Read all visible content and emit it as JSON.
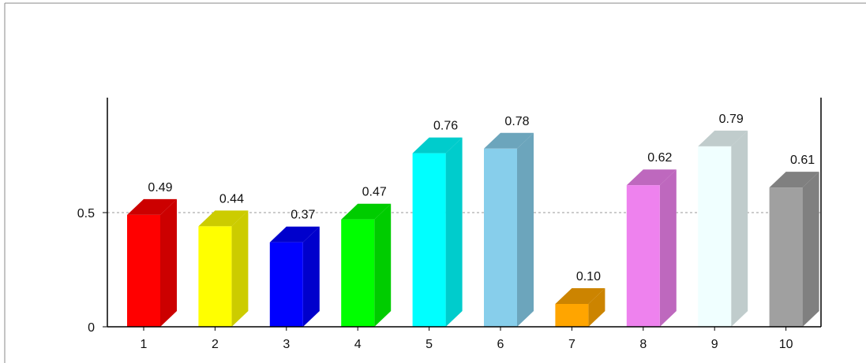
{
  "chart_data": {
    "type": "bar",
    "style": "3d",
    "categories": [
      "1",
      "2",
      "3",
      "4",
      "5",
      "6",
      "7",
      "8",
      "9",
      "10"
    ],
    "values": [
      0.49,
      0.44,
      0.37,
      0.47,
      0.76,
      0.78,
      0.1,
      0.62,
      0.79,
      0.61
    ],
    "value_labels": [
      "0.49",
      "0.44",
      "0.37",
      "0.47",
      "0.76",
      "0.78",
      "0.10",
      "0.62",
      "0.79",
      "0.61"
    ],
    "colors": [
      "#ff0000",
      "#ffff00",
      "#0000ff",
      "#00ff00",
      "#00ffff",
      "#87ceeb",
      "#ffa500",
      "#ee82ee",
      "#f0ffff",
      "#a0a0a0"
    ],
    "y_ticks": [
      {
        "value": 0,
        "label": "0"
      },
      {
        "value": 0.5,
        "label": "0.5"
      }
    ],
    "reference_line": 0.5,
    "ylim": [
      0,
      1
    ],
    "title": "",
    "xlabel": "",
    "ylabel": "",
    "grid": false,
    "legend": "none"
  }
}
